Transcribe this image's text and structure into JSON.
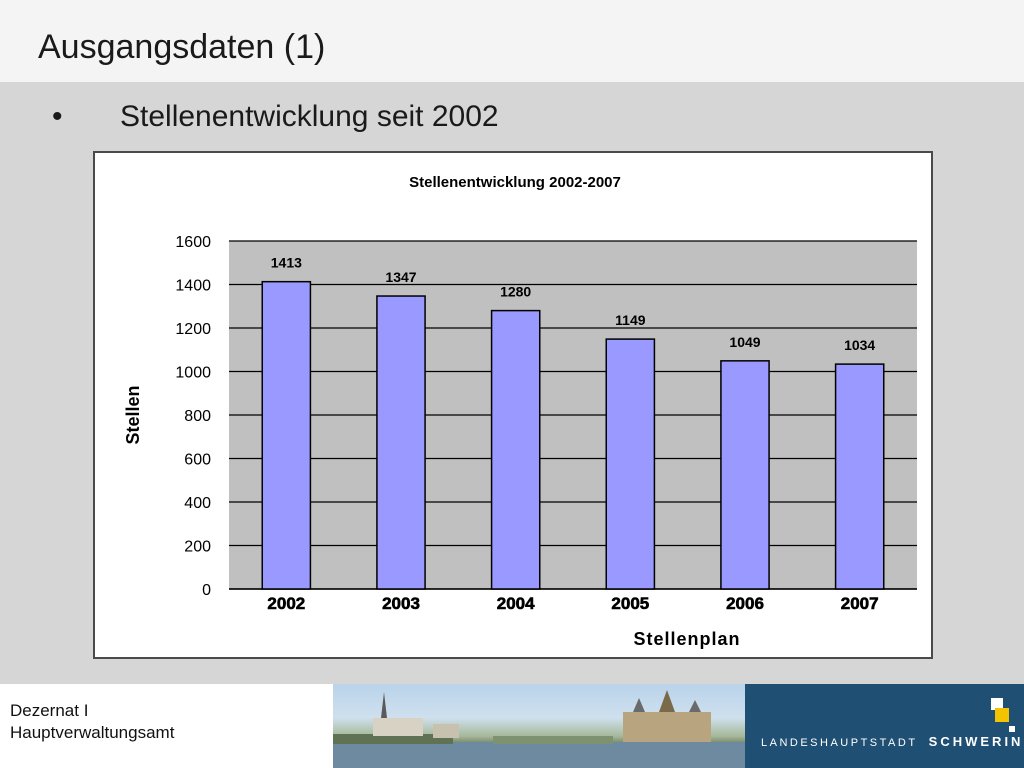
{
  "slide": {
    "title": "Ausgangsdaten (1)",
    "bullet": "•",
    "subtitle": "Stellenentwicklung seit 2002"
  },
  "footer": {
    "line1": "Dezernat I",
    "line2": "Hauptverwaltungsamt",
    "brand_prefix": "LANDESHAUPTSTADT",
    "brand_name": "SCHWERIN"
  },
  "colors": {
    "bar_fill": "#9999ff",
    "bar_stroke": "#000000",
    "plot_background": "#c0c0c0",
    "slide_background": "#d6d6d6",
    "brand_blue": "#1f4f73",
    "logo_yellow": "#f2c400"
  },
  "chart_data": {
    "type": "bar",
    "title": "Stellenentwicklung 2002-2007",
    "xlabel": "Stellenplan",
    "ylabel": "Stellen",
    "categories": [
      "2002",
      "2003",
      "2004",
      "2005",
      "2006",
      "2007"
    ],
    "values": [
      1413,
      1347,
      1280,
      1149,
      1049,
      1034
    ],
    "data_labels": [
      "1413",
      "1347",
      "1280",
      "1149",
      "1049",
      "1034"
    ],
    "ylim": [
      0,
      1600
    ],
    "yticks": [
      0,
      200,
      400,
      600,
      800,
      1000,
      1200,
      1400,
      1600
    ],
    "grid": true,
    "legend": "none"
  }
}
